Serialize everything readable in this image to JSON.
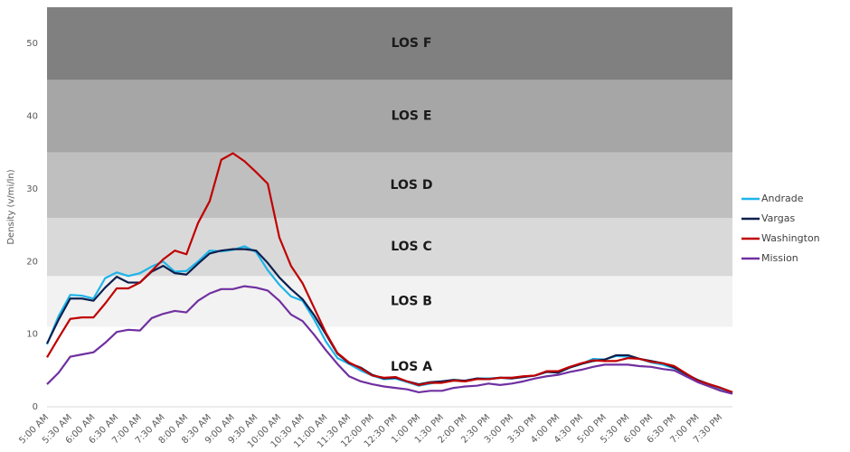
{
  "chart_data": {
    "type": "line",
    "y_label": "Density (v/mi/ln)",
    "ylim": [
      0,
      55
    ],
    "yticks": [
      0,
      10,
      20,
      30,
      40,
      50
    ],
    "grid": false,
    "legend": "right",
    "bands": [
      {
        "label": "LOS A",
        "from": 0,
        "to": 11,
        "color": "#ffffff"
      },
      {
        "label": "LOS B",
        "from": 11,
        "to": 18,
        "color": "#f2f2f2"
      },
      {
        "label": "LOS C",
        "from": 18,
        "to": 26,
        "color": "#d9d9d9"
      },
      {
        "label": "LOS D",
        "from": 26,
        "to": 35,
        "color": "#bfbfbf"
      },
      {
        "label": "LOS E",
        "from": 35,
        "to": 45,
        "color": "#a6a6a6"
      },
      {
        "label": "LOS F",
        "from": 45,
        "to": 55,
        "color": "#808080"
      }
    ],
    "categories": [
      "5:00 AM",
      null,
      "5:30 AM",
      null,
      "6:00 AM",
      null,
      "6:30 AM",
      null,
      "7:00 AM",
      null,
      "7:30 AM",
      null,
      "8:00 AM",
      null,
      "8:30 AM",
      null,
      "9:00 AM",
      null,
      "9:30 AM",
      null,
      "10:00 AM",
      null,
      "10:30 AM",
      null,
      "11:00 AM",
      null,
      "11:30 AM",
      null,
      "12:00 PM",
      null,
      "12:30 PM",
      null,
      "1:00 PM",
      null,
      "1:30 PM",
      null,
      "2:00 PM",
      null,
      "2:30 PM",
      null,
      "3:00 PM",
      null,
      "3:30 PM",
      null,
      "4:00 PM",
      null,
      "4:30 PM",
      null,
      "5:00 PM",
      null,
      "5:30 PM",
      null,
      "6:00 PM",
      null,
      "6:30 PM",
      null,
      "7:00 PM",
      null,
      "7:30 PM",
      null
    ],
    "series": [
      {
        "name": "Andrade",
        "color": "#1fb4e8",
        "values": [
          8.6,
          12.5,
          15.4,
          15.3,
          14.9,
          17.7,
          18.5,
          18.0,
          18.4,
          19.3,
          20.0,
          18.6,
          18.7,
          20.0,
          21.5,
          21.4,
          21.6,
          22.1,
          21.3,
          18.8,
          16.8,
          15.2,
          14.6,
          12.0,
          9.0,
          6.7,
          5.9,
          5.0,
          4.3,
          3.8,
          3.9,
          3.4,
          2.9,
          3.2,
          3.5,
          3.6,
          3.6,
          3.9,
          3.9,
          4.0,
          4.0,
          4.1,
          4.3,
          4.8,
          4.8,
          5.4,
          5.9,
          6.6,
          6.5,
          7.0,
          6.9,
          6.6,
          6.1,
          5.8,
          5.3,
          4.5,
          3.6,
          3.0,
          2.5,
          2.0
        ]
      },
      {
        "name": "Vargas",
        "color": "#0d1f4e",
        "values": [
          8.7,
          12.0,
          14.9,
          14.9,
          14.6,
          16.4,
          17.9,
          17.1,
          17.1,
          18.6,
          19.4,
          18.4,
          18.2,
          19.7,
          21.1,
          21.5,
          21.7,
          21.7,
          21.5,
          19.8,
          17.8,
          16.2,
          14.8,
          12.6,
          10.0,
          7.3,
          6.0,
          5.4,
          4.4,
          3.9,
          4.0,
          3.5,
          3.1,
          3.4,
          3.5,
          3.7,
          3.6,
          3.9,
          3.8,
          4.0,
          3.9,
          4.1,
          4.3,
          4.8,
          4.7,
          5.4,
          5.9,
          6.3,
          6.5,
          7.1,
          7.1,
          6.6,
          6.3,
          6.0,
          5.4,
          4.5,
          3.7,
          3.1,
          2.6,
          2.0
        ]
      },
      {
        "name": "Washington",
        "color": "#c00000",
        "values": [
          6.8,
          9.5,
          12.1,
          12.3,
          12.3,
          14.2,
          16.3,
          16.3,
          17.1,
          18.7,
          20.3,
          21.5,
          21.0,
          25.3,
          28.3,
          34.0,
          34.9,
          33.8,
          32.3,
          30.7,
          23.3,
          19.4,
          17.0,
          13.6,
          10.2,
          7.4,
          6.1,
          5.3,
          4.3,
          4.0,
          4.1,
          3.5,
          3.0,
          3.3,
          3.3,
          3.6,
          3.5,
          3.8,
          3.8,
          4.0,
          4.0,
          4.2,
          4.3,
          4.9,
          4.9,
          5.5,
          6.0,
          6.4,
          6.3,
          6.3,
          6.7,
          6.6,
          6.2,
          6.0,
          5.6,
          4.6,
          3.6,
          3.1,
          2.6,
          2.0
        ]
      },
      {
        "name": "Mission",
        "color": "#7030a0",
        "values": [
          3.1,
          4.7,
          6.9,
          7.2,
          7.5,
          8.8,
          10.3,
          10.6,
          10.5,
          12.2,
          12.8,
          13.2,
          13.0,
          14.6,
          15.6,
          16.2,
          16.2,
          16.6,
          16.4,
          16.0,
          14.6,
          12.7,
          11.8,
          9.9,
          7.8,
          5.9,
          4.2,
          3.5,
          3.1,
          2.8,
          2.6,
          2.4,
          2.0,
          2.2,
          2.2,
          2.6,
          2.8,
          2.9,
          3.2,
          3.0,
          3.2,
          3.5,
          3.9,
          4.2,
          4.4,
          4.8,
          5.1,
          5.5,
          5.8,
          5.8,
          5.8,
          5.6,
          5.5,
          5.2,
          5.0,
          4.2,
          3.4,
          2.8,
          2.2,
          1.8
        ]
      }
    ]
  }
}
